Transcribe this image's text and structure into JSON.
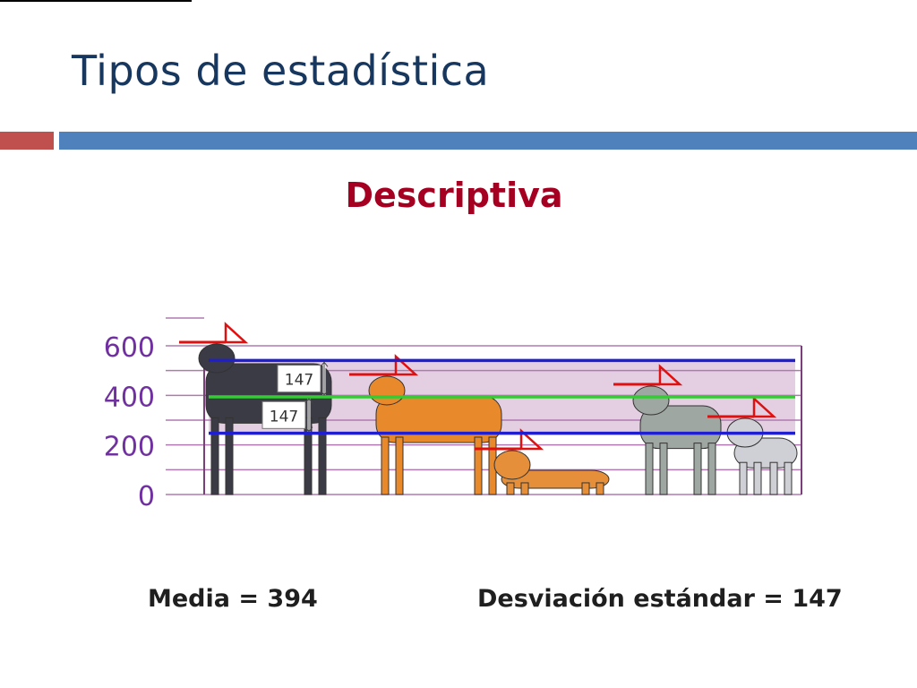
{
  "slide": {
    "title": "Tipos de estadística",
    "subtitle": "Descriptiva",
    "mean_label": "Media = 394",
    "sd_label": "Desviación estándar =  147"
  },
  "colors": {
    "title": "#17375e",
    "subtitle": "#a50021",
    "accent_red": "#c0504d",
    "accent_blue": "#4f81bd",
    "axis_label": "#7030a0",
    "band": "#e4cfe2",
    "mean_line": "#33cc33",
    "sd_line": "#1f1fd1"
  },
  "chart_data": {
    "type": "bar",
    "ylim": [
      0,
      600
    ],
    "yticks": [
      0,
      200,
      400,
      600
    ],
    "grid": true,
    "categories": [
      "Rottweiler",
      "Greyhound",
      "Dachshund",
      "Schnauzer",
      "Boston Terrier"
    ],
    "values": [
      600,
      470,
      170,
      430,
      300
    ],
    "mean": 394,
    "sd": 147,
    "sd_labels": [
      "147",
      "147"
    ]
  }
}
